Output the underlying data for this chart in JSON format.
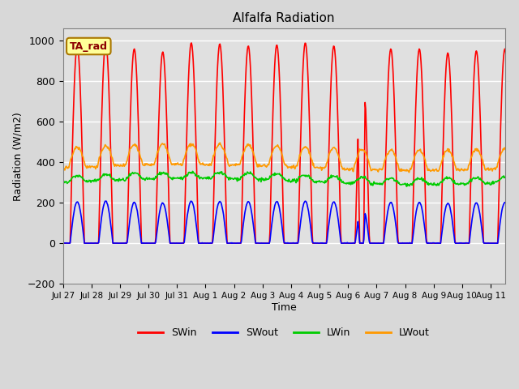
{
  "title": "Alfalfa Radiation",
  "ylabel": "Radiation (W/m2)",
  "xlabel": "Time",
  "ylim": [
    -200,
    1060
  ],
  "yticks": [
    -200,
    0,
    200,
    400,
    600,
    800,
    1000
  ],
  "colors": {
    "SWin": "#ff0000",
    "SWout": "#0000ff",
    "LWin": "#00cc00",
    "LWout": "#ff9900"
  },
  "background_color": "#e0e0e0",
  "legend_label": "TA_rad",
  "x_tick_positions": [
    0,
    1,
    2,
    3,
    4,
    5,
    6,
    7,
    8,
    9,
    10,
    11,
    12,
    13,
    14,
    15
  ],
  "x_tick_labels": [
    "Jul 27",
    "Jul 28",
    "Jul 29",
    "Jul 30",
    "Jul 31",
    "Aug 1",
    "Aug 2",
    "Aug 3",
    "Aug 4",
    "Aug 5",
    "Aug 6",
    "Aug 7",
    "Aug 8",
    "Aug 9",
    "Aug 10",
    "Aug 11"
  ],
  "linewidth": 1.2
}
